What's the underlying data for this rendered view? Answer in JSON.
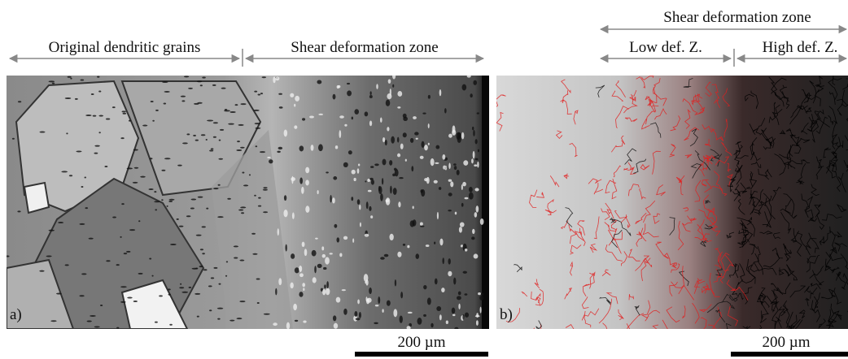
{
  "panels": [
    {
      "label": "a)",
      "zones": [
        "Original dendritic grains",
        "Shear deformation zone"
      ],
      "scale_bar": "200 µm"
    },
    {
      "label": "b)",
      "zone": "Shear deformation zone",
      "subzones": [
        "Low def. Z.",
        "High def. Z."
      ],
      "scale_bar": "200 µm"
    }
  ]
}
